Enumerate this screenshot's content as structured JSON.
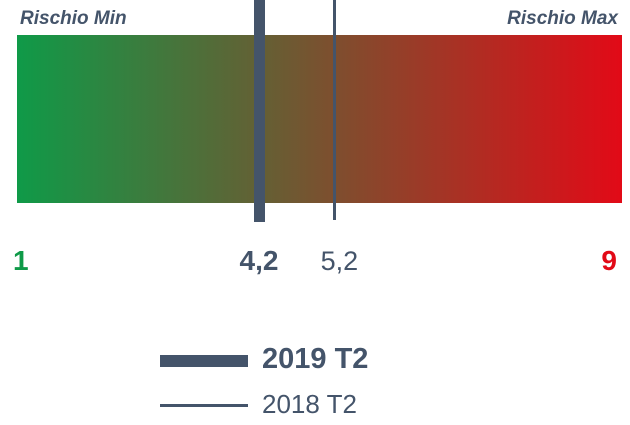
{
  "chart_data": {
    "type": "gauge",
    "scale_min": 1,
    "scale_max": 9,
    "scale_min_text": "1",
    "scale_max_text": "9",
    "min_label": "Rischio Min",
    "max_label": "Rischio Max",
    "gradient_colors": [
      "#0f9a48",
      "#e20a17"
    ],
    "min_color": "#0f9a48",
    "max_color": "#e20a17",
    "marker_color": "#44546a",
    "markers": [
      {
        "id": "current",
        "name": "2019 T2",
        "value": 4.2,
        "value_text": "4,2",
        "style": "thick"
      },
      {
        "id": "prev",
        "name": "2018 T2",
        "value": 5.2,
        "value_text": "5,2",
        "style": "thin"
      }
    ]
  }
}
